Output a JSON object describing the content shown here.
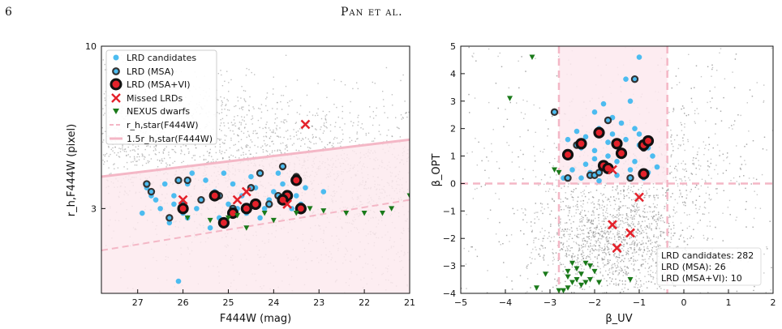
{
  "header": {
    "page_number": "6",
    "running_head": "Pan et al."
  },
  "colors": {
    "background_points": "#8c8c8c",
    "lrd_candidates": "#4cbcf0",
    "lrd_msa_edge": "#333333",
    "lrd_msa_vi_fill": "#e4222b",
    "missed": "#e4222b",
    "nexus_dwarfs": "#1a7a1a",
    "pink_line": "#f4b7c6",
    "pink_fill": "#fde9ee"
  },
  "chart_data": [
    {
      "type": "scatter",
      "panel": "left",
      "xlabel": "F444W (mag)",
      "ylabel": "r_h,F444W (pixel)",
      "x_ticks": [
        "27",
        "26",
        "25",
        "24",
        "23",
        "22",
        "21"
      ],
      "y_ticks": [
        "10",
        "3"
      ],
      "xlim": [
        27.8,
        21.0
      ],
      "ylim_log": [
        1.6,
        10
      ],
      "x_inverted": true,
      "y_log": true,
      "legend_location": "upper left",
      "legend": [
        "LRD candidates",
        "LRD (MSA)",
        "LRD (MSA+VI)",
        "Missed LRDs",
        "NEXUS dwarfs",
        "r_h,star(F444W)",
        "1.5r_h,star(F444W)"
      ],
      "lines": [
        {
          "name": "r_h,star(F444W)",
          "x": [
            27.8,
            21.0
          ],
          "y": [
            2.2,
            3.2
          ]
        },
        {
          "name": "1.5r_h,star(F444W)",
          "x": [
            27.8,
            21.0
          ],
          "y": [
            3.8,
            5.0
          ]
        }
      ],
      "series": [
        {
          "name": "LRD candidates",
          "points": [
            [
              26.5,
              3.0
            ],
            [
              26.2,
              3.3
            ],
            [
              25.9,
              3.6
            ],
            [
              25.6,
              3.2
            ],
            [
              25.3,
              3.4
            ],
            [
              25.0,
              3.1
            ],
            [
              24.7,
              3.3
            ],
            [
              24.4,
              3.5
            ],
            [
              24.1,
              3.2
            ],
            [
              23.8,
              3.6
            ],
            [
              23.5,
              3.3
            ],
            [
              26.8,
              3.5
            ],
            [
              26.0,
              2.9
            ],
            [
              25.5,
              3.7
            ],
            [
              24.9,
              3.6
            ],
            [
              24.2,
              3.0
            ],
            [
              23.6,
              3.0
            ],
            [
              26.3,
              2.7
            ],
            [
              25.2,
              2.8
            ],
            [
              24.6,
              2.9
            ],
            [
              26.1,
              1.75
            ],
            [
              23.9,
              3.9
            ],
            [
              25.8,
              3.9
            ],
            [
              24.5,
              3.8
            ],
            [
              23.3,
              3.5
            ],
            [
              22.9,
              3.4
            ],
            [
              26.6,
              3.2
            ],
            [
              25.7,
              3.0
            ],
            [
              24.8,
              3.0
            ],
            [
              23.7,
              3.2
            ],
            [
              26.4,
              3.6
            ],
            [
              25.4,
              2.6
            ],
            [
              24.3,
              2.8
            ],
            [
              25.1,
              3.9
            ],
            [
              26.9,
              2.9
            ],
            [
              26.7,
              3.3
            ],
            [
              26.2,
              3.1
            ],
            [
              25.9,
              2.8
            ],
            [
              24.0,
              3.4
            ],
            [
              23.4,
              3.1
            ]
          ]
        },
        {
          "name": "LRD (MSA)",
          "points": [
            [
              26.7,
              3.4
            ],
            [
              26.1,
              3.7
            ],
            [
              25.9,
              3.7
            ],
            [
              26.3,
              2.8
            ],
            [
              26.0,
              3.1
            ],
            [
              23.8,
              4.1
            ],
            [
              23.5,
              3.8
            ],
            [
              24.5,
              3.5
            ],
            [
              25.2,
              3.3
            ],
            [
              26.0,
              3.0
            ],
            [
              24.1,
              3.1
            ],
            [
              25.6,
              3.2
            ],
            [
              24.9,
              3.0
            ],
            [
              26.8,
              3.6
            ],
            [
              24.3,
              3.9
            ],
            [
              23.9,
              3.3
            ]
          ]
        },
        {
          "name": "LRD (MSA+VI)",
          "points": [
            [
              26.0,
              3.0
            ],
            [
              25.3,
              3.3
            ],
            [
              24.6,
              3.0
            ],
            [
              24.4,
              3.1
            ],
            [
              23.7,
              3.3
            ],
            [
              23.4,
              3.0
            ],
            [
              23.5,
              3.7
            ],
            [
              24.9,
              2.9
            ],
            [
              25.1,
              2.7
            ],
            [
              23.8,
              3.2
            ]
          ]
        },
        {
          "name": "Missed LRDs",
          "points": [
            [
              23.3,
              5.6
            ],
            [
              26.0,
              3.2
            ],
            [
              24.6,
              3.4
            ],
            [
              24.8,
              3.2
            ],
            [
              23.7,
              3.1
            ]
          ]
        },
        {
          "name": "NEXUS dwarfs",
          "points": [
            [
              25.9,
              2.8
            ],
            [
              25.4,
              2.75
            ],
            [
              25.0,
              2.8
            ],
            [
              24.6,
              2.6
            ],
            [
              24.2,
              2.9
            ],
            [
              24.0,
              2.75
            ],
            [
              23.5,
              2.9
            ],
            [
              22.9,
              2.95
            ],
            [
              22.4,
              2.9
            ],
            [
              21.6,
              2.9
            ],
            [
              21.4,
              3.0
            ],
            [
              21.0,
              3.3
            ],
            [
              24.8,
              2.85
            ],
            [
              23.2,
              3.0
            ],
            [
              22.0,
              2.9
            ]
          ]
        }
      ]
    },
    {
      "type": "scatter",
      "panel": "right",
      "xlabel": "β_UV",
      "ylabel": "β_OPT",
      "x_ticks": [
        "−5",
        "−4",
        "−3",
        "−2",
        "−1",
        "0",
        "1",
        "2"
      ],
      "y_ticks": [
        "−4",
        "−3",
        "−2",
        "−1",
        "0",
        "1",
        "2",
        "3",
        "4",
        "5"
      ],
      "xlim": [
        -5,
        2
      ],
      "ylim": [
        -4,
        5
      ],
      "selection_box": {
        "x": [
          -2.8,
          -0.37
        ],
        "y_min": 0
      },
      "stats": [
        "LRD candidates: 282",
        "LRD (MSA): 26",
        "LRD (MSA+VI): 10"
      ],
      "series": [
        {
          "name": "LRD candidates",
          "points": [
            [
              -2.6,
              1.0
            ],
            [
              -2.3,
              1.3
            ],
            [
              -2.0,
              0.9
            ],
            [
              -1.7,
              1.5
            ],
            [
              -1.4,
              1.1
            ],
            [
              -1.1,
              0.8
            ],
            [
              -0.8,
              1.3
            ],
            [
              -2.5,
              0.5
            ],
            [
              -2.1,
              0.4
            ],
            [
              -1.8,
              0.6
            ],
            [
              -1.5,
              0.3
            ],
            [
              -1.2,
              0.5
            ],
            [
              -0.9,
              0.2
            ],
            [
              -2.2,
              1.7
            ],
            [
              -1.9,
              2.0
            ],
            [
              -1.6,
              1.8
            ],
            [
              -1.3,
              1.6
            ],
            [
              -1.0,
              1.4
            ],
            [
              -0.7,
              1.0
            ],
            [
              -2.4,
              1.9
            ],
            [
              -1.7,
              2.3
            ],
            [
              -1.4,
              2.2
            ],
            [
              -1.1,
              2.0
            ],
            [
              -2.7,
              0.2
            ],
            [
              -2.0,
              2.6
            ],
            [
              -1.8,
              2.9
            ],
            [
              -1.6,
              2.4
            ],
            [
              -1.2,
              3.0
            ],
            [
              -1.0,
              4.6
            ],
            [
              -1.3,
              3.8
            ],
            [
              -2.0,
              1.2
            ],
            [
              -1.5,
              0.8
            ],
            [
              -0.6,
              0.6
            ],
            [
              -2.3,
              0.2
            ],
            [
              -1.9,
              0.1
            ],
            [
              -2.6,
              1.6
            ],
            [
              -1.0,
              1.8
            ],
            [
              -0.8,
              0.4
            ],
            [
              -1.7,
              1.0
            ],
            [
              -2.2,
              0.7
            ]
          ]
        },
        {
          "name": "LRD (MSA)",
          "points": [
            [
              -2.9,
              2.6
            ],
            [
              -1.1,
              3.8
            ],
            [
              -1.7,
              2.3
            ],
            [
              -1.8,
              0.6
            ],
            [
              -2.6,
              0.2
            ],
            [
              -2.1,
              0.3
            ],
            [
              -1.2,
              0.2
            ],
            [
              -2.4,
              1.4
            ],
            [
              -0.9,
              1.3
            ],
            [
              -2.0,
              0.3
            ],
            [
              -1.9,
              0.4
            ]
          ]
        },
        {
          "name": "LRD (MSA+VI)",
          "points": [
            [
              -2.6,
              1.05
            ],
            [
              -2.3,
              1.45
            ],
            [
              -1.9,
              1.85
            ],
            [
              -1.5,
              1.45
            ],
            [
              -1.4,
              1.1
            ],
            [
              -1.8,
              0.65
            ],
            [
              -0.9,
              1.4
            ],
            [
              -0.8,
              1.55
            ],
            [
              -0.9,
              0.35
            ],
            [
              -1.7,
              0.55
            ]
          ]
        },
        {
          "name": "Missed LRDs",
          "points": [
            [
              -1.6,
              0.5
            ],
            [
              -1.0,
              -0.5
            ],
            [
              -1.6,
              -1.5
            ],
            [
              -1.2,
              -1.8
            ],
            [
              -1.5,
              -2.35
            ]
          ]
        },
        {
          "name": "NEXUS dwarfs",
          "points": [
            [
              -3.4,
              4.6
            ],
            [
              -3.9,
              3.1
            ],
            [
              -2.8,
              0.4
            ],
            [
              -2.9,
              0.5
            ],
            [
              -3.1,
              -3.3
            ],
            [
              -3.3,
              -3.8
            ],
            [
              -2.6,
              -3.2
            ],
            [
              -2.5,
              -2.9
            ],
            [
              -2.4,
              -3.1
            ],
            [
              -2.3,
              -3.3
            ],
            [
              -2.2,
              -2.9
            ],
            [
              -2.1,
              -3.5
            ],
            [
              -2.0,
              -3.2
            ],
            [
              -2.5,
              -3.6
            ],
            [
              -2.6,
              -3.4
            ],
            [
              -2.3,
              -3.7
            ],
            [
              -2.1,
              -3.0
            ],
            [
              -2.7,
              -3.9
            ],
            [
              -2.4,
              -3.5
            ],
            [
              -2.8,
              -3.9
            ],
            [
              -1.9,
              -3.6
            ],
            [
              -1.2,
              -3.5
            ],
            [
              -2.6,
              -3.8
            ],
            [
              -2.2,
              -3.6
            ]
          ]
        }
      ]
    }
  ]
}
